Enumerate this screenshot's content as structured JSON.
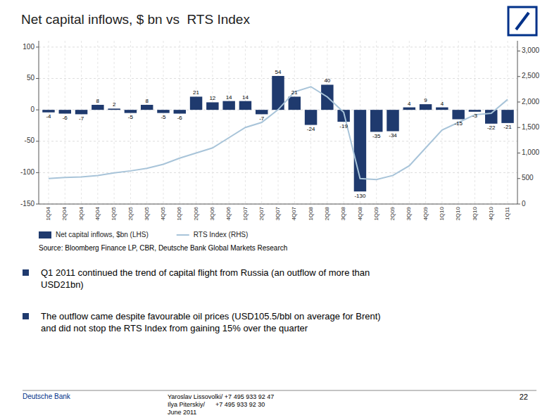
{
  "chart_data": {
    "type": "bar",
    "title": "Net capital inflows, $ bn vs  RTS Index",
    "categories": [
      "1Q04",
      "2Q04",
      "3Q04",
      "4Q04",
      "1Q05",
      "2Q05",
      "3Q05",
      "4Q05",
      "1Q06",
      "2Q06",
      "3Q06",
      "4Q06",
      "1Q07",
      "2Q07",
      "3Q07",
      "4Q07",
      "1Q08",
      "2Q08",
      "3Q08",
      "4Q08",
      "1Q09",
      "2Q09",
      "3Q09",
      "4Q09",
      "1Q10",
      "2Q10",
      "3Q10",
      "4Q10",
      "1Q11"
    ],
    "series": [
      {
        "name": "Net capital inflows, $bn (LHS)",
        "type": "bar",
        "color": "#1F3A6E",
        "data_labels": true,
        "values": [
          -4,
          -6,
          -7,
          8,
          2,
          -5,
          8,
          -5,
          -6,
          21,
          12,
          14,
          14,
          -7,
          54,
          21,
          -24,
          40,
          -19,
          -130,
          -35,
          -34,
          4,
          9,
          4,
          -15,
          -3,
          -22,
          -21
        ]
      },
      {
        "name": "RTS Index (RHS)",
        "type": "line",
        "color": "#A8C4D9",
        "axis": "y2",
        "values": [
          500,
          520,
          530,
          560,
          610,
          650,
          700,
          780,
          900,
          1000,
          1100,
          1300,
          1500,
          1600,
          1850,
          2200,
          2300,
          2100,
          1800,
          500,
          480,
          560,
          750,
          1100,
          1450,
          1600,
          1750,
          1780,
          2050
        ]
      }
    ],
    "ylim": [
      -150,
      110
    ],
    "yticks": [
      -150,
      -100,
      -50,
      0,
      50,
      100
    ],
    "y2lim": [
      0,
      3200
    ],
    "y2ticks": [
      0,
      500,
      {
        "value": 1000,
        "label": "1,000"
      },
      {
        "value": 1500,
        "label": "1,500"
      },
      {
        "value": 2000,
        "label": "2,000"
      },
      {
        "value": 2500,
        "label": "2,500"
      },
      {
        "value": 3000,
        "label": "3,000"
      }
    ],
    "grid": true,
    "legend": "bottom",
    "source": "Source: Bloomberg Finance LP, CBR, Deutsche Bank Global Markets Research",
    "notes": [
      "Q1 2011 continued the trend of capital flight from Russia (an outflow of more than\nUSD21bn)",
      "The outflow came despite favourable oil prices (USD105.5/bbl on average for Brent)\nand did not stop the RTS Index from gaining 15% over the quarter"
    ],
    "footer": {
      "left": "Deutsche Bank",
      "color": "#003189",
      "contact": "Yaroslav Lissovolki/ +7 495 933 92 47\nIlya Piterskiy/      +7 495 933 92 30\nJune 2011",
      "page": "22"
    }
  }
}
